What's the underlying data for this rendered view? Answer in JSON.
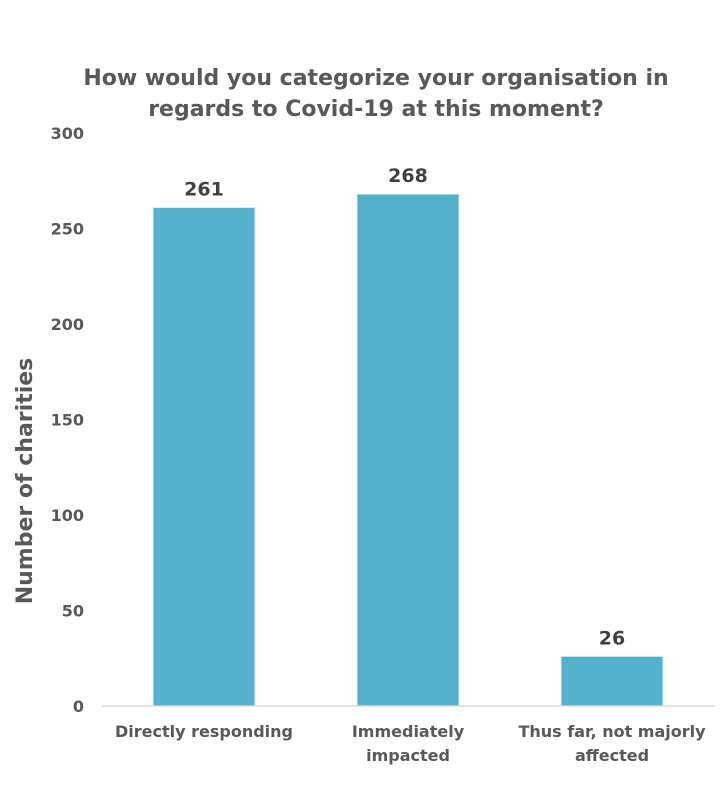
{
  "chart_data": {
    "type": "bar",
    "title_lines": [
      "How would you categorize your organisation in",
      "regards to Covid-19 at this moment?"
    ],
    "ylabel": "Number of charities",
    "xlabel": "",
    "categories": [
      [
        "Directly responding"
      ],
      [
        "Immediately",
        "impacted"
      ],
      [
        "Thus far, not majorly",
        "affected"
      ]
    ],
    "values": [
      261,
      268,
      26
    ],
    "data_labels": [
      "261",
      "268",
      "26"
    ],
    "ylim": [
      0,
      300
    ],
    "yticks": [
      "0",
      "50",
      "100",
      "150",
      "200",
      "250",
      "300"
    ],
    "bar_color": "#56AFCB",
    "grid": false,
    "legend": "none"
  }
}
